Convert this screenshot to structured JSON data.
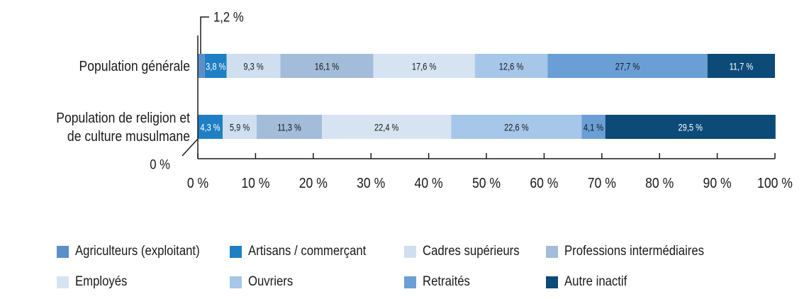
{
  "chart_data": {
    "type": "bar",
    "orientation": "horizontal",
    "stacked": true,
    "categories": [
      "Population générale",
      "Population de religion et de culture musulmane"
    ],
    "category_lines": [
      [
        "Population générale"
      ],
      [
        "Population de religion et",
        "de culture musulmane"
      ]
    ],
    "series": [
      {
        "name": "Agriculteurs (exploitant)",
        "color": "#5b8fc9",
        "text_color": "#ffffff",
        "values": [
          1.2,
          0
        ],
        "labels": [
          "",
          ""
        ]
      },
      {
        "name": "Artisans / commerçant",
        "color": "#1f7fc4",
        "text_color": "#ffffff",
        "values": [
          3.8,
          4.3
        ],
        "labels": [
          "3,8 %",
          "4,3 %"
        ]
      },
      {
        "name": "Cadres supérieurs",
        "color": "#cfdff0",
        "text_color": "#1a1a1a",
        "values": [
          9.3,
          5.9
        ],
        "labels": [
          "9,3 %",
          "5,9 %"
        ]
      },
      {
        "name": "Professions intermédiaires",
        "color": "#a3bcd9",
        "text_color": "#1a1a1a",
        "values": [
          16.1,
          11.3
        ],
        "labels": [
          "16,1 %",
          "11,3 %"
        ]
      },
      {
        "name": "Employés",
        "color": "#d6e4f2",
        "text_color": "#1a1a1a",
        "values": [
          17.6,
          22.4
        ],
        "labels": [
          "17,6 %",
          "22,4 %"
        ]
      },
      {
        "name": "Ouvriers",
        "color": "#a6c6ea",
        "text_color": "#1a1a1a",
        "values": [
          12.6,
          22.6
        ],
        "labels": [
          "12,6 %",
          "22,6 %"
        ]
      },
      {
        "name": "Retraités",
        "color": "#6a9fd6",
        "text_color": "#1a1a1a",
        "values": [
          27.7,
          4.1
        ],
        "labels": [
          "27,7 %",
          "4,1 %"
        ]
      },
      {
        "name": "Autre inactif",
        "color": "#0c4a78",
        "text_color": "#ffffff",
        "values": [
          11.7,
          29.5
        ],
        "labels": [
          "11,7 %",
          "29,5 %"
        ]
      }
    ],
    "xlim": [
      0,
      100
    ],
    "x_ticks": [
      0,
      10,
      20,
      30,
      40,
      50,
      60,
      70,
      80,
      90,
      100
    ],
    "x_tick_labels": [
      "0 %",
      "10 %",
      "20 %",
      "30 %",
      "40 %",
      "50 %",
      "60 %",
      "70 %",
      "80 %",
      "90 %",
      "100 %"
    ],
    "annotations": [
      {
        "text": "1,2 %",
        "target": "Population générale / Agriculteurs (exploitant)"
      },
      {
        "text": "0 %",
        "target": "Population de religion et de culture musulmane / Agriculteurs (exploitant)"
      }
    ],
    "legend_position": "bottom",
    "grid": false,
    "title": "",
    "xlabel": "",
    "ylabel": ""
  }
}
